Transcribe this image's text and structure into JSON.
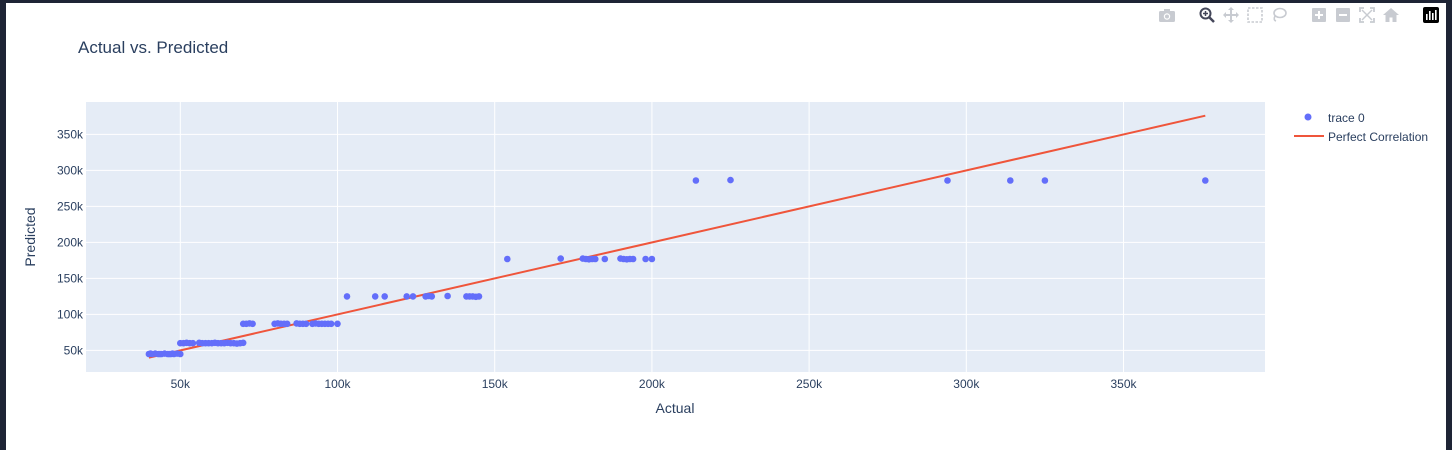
{
  "modebar": {
    "buttons": [
      "camera-icon",
      "zoom-icon",
      "pan-icon",
      "box-select-icon",
      "lasso-select-icon",
      "zoom-in-icon",
      "zoom-out-icon",
      "autoscale-icon",
      "reset-axes-icon",
      "plotly-logo-icon"
    ]
  },
  "chart_data": {
    "type": "scatter",
    "title": "Actual vs. Predicted",
    "xlabel": "Actual",
    "ylabel": "Predicted",
    "xlim": [
      20000,
      395000
    ],
    "ylim": [
      20000,
      395000
    ],
    "x_ticks": [
      50000,
      100000,
      150000,
      200000,
      250000,
      300000,
      350000
    ],
    "x_tick_labels": [
      "50k",
      "100k",
      "150k",
      "200k",
      "250k",
      "300k",
      "350k"
    ],
    "y_ticks": [
      50000,
      100000,
      150000,
      200000,
      250000,
      300000,
      350000
    ],
    "y_tick_labels": [
      "50k",
      "100k",
      "150k",
      "200k",
      "250k",
      "300k",
      "350k"
    ],
    "grid": true,
    "legend_position": "top-right",
    "colors": {
      "scatter": "#636efa",
      "line": "#ef553b",
      "plot_bg": "#e5ecf6",
      "text": "#2a3f5f"
    },
    "series": [
      {
        "name": "trace 0",
        "mode": "markers",
        "points": [
          [
            40000,
            45000
          ],
          [
            41000,
            45000
          ],
          [
            42000,
            45500
          ],
          [
            43000,
            45000
          ],
          [
            44000,
            45000
          ],
          [
            45000,
            45500
          ],
          [
            46000,
            45000
          ],
          [
            47000,
            45000
          ],
          [
            48000,
            45000
          ],
          [
            49000,
            45500
          ],
          [
            50000,
            45000
          ],
          [
            40500,
            45500
          ],
          [
            43500,
            45000
          ],
          [
            47500,
            45500
          ],
          [
            46500,
            45000
          ],
          [
            50000,
            60000
          ],
          [
            51000,
            60000
          ],
          [
            52000,
            60500
          ],
          [
            53000,
            60000
          ],
          [
            54000,
            60000
          ],
          [
            56000,
            60500
          ],
          [
            57000,
            60000
          ],
          [
            58000,
            60000
          ],
          [
            60000,
            60000
          ],
          [
            61000,
            60500
          ],
          [
            62000,
            60000
          ],
          [
            63000,
            60000
          ],
          [
            65000,
            60500
          ],
          [
            66000,
            60000
          ],
          [
            67000,
            60000
          ],
          [
            68000,
            59500
          ],
          [
            69000,
            60000
          ],
          [
            70000,
            60500
          ],
          [
            59000,
            60000
          ],
          [
            64000,
            60000
          ],
          [
            70000,
            87000
          ],
          [
            71000,
            87000
          ],
          [
            72000,
            87500
          ],
          [
            73000,
            87000
          ],
          [
            80000,
            87000
          ],
          [
            81000,
            87500
          ],
          [
            82000,
            87000
          ],
          [
            83000,
            87000
          ],
          [
            84000,
            87000
          ],
          [
            87000,
            87500
          ],
          [
            88000,
            87000
          ],
          [
            89000,
            87000
          ],
          [
            90000,
            87000
          ],
          [
            92000,
            87000
          ],
          [
            93000,
            87500
          ],
          [
            94000,
            87000
          ],
          [
            95000,
            87000
          ],
          [
            96000,
            87000
          ],
          [
            97000,
            87000
          ],
          [
            98000,
            87000
          ],
          [
            100000,
            87000
          ],
          [
            103000,
            125000
          ],
          [
            112000,
            125000
          ],
          [
            115000,
            125000
          ],
          [
            122000,
            125000
          ],
          [
            124000,
            125000
          ],
          [
            128000,
            125000
          ],
          [
            129000,
            125500
          ],
          [
            130000,
            125000
          ],
          [
            135000,
            125500
          ],
          [
            141000,
            125000
          ],
          [
            142000,
            125000
          ],
          [
            143000,
            125000
          ],
          [
            144000,
            124500
          ],
          [
            145000,
            125000
          ],
          [
            154000,
            177000
          ],
          [
            171000,
            177500
          ],
          [
            178000,
            177500
          ],
          [
            179000,
            177000
          ],
          [
            180000,
            176500
          ],
          [
            181000,
            177000
          ],
          [
            182000,
            177000
          ],
          [
            185000,
            177000
          ],
          [
            190000,
            177500
          ],
          [
            191000,
            177000
          ],
          [
            192000,
            176500
          ],
          [
            193000,
            177000
          ],
          [
            194000,
            177000
          ],
          [
            198000,
            177000
          ],
          [
            200000,
            177000
          ],
          [
            214000,
            286000
          ],
          [
            225000,
            286500
          ],
          [
            294000,
            286000
          ],
          [
            314000,
            286000
          ],
          [
            325000,
            286000
          ],
          [
            376000,
            286000
          ]
        ]
      },
      {
        "name": "Perfect Correlation",
        "mode": "lines",
        "points": [
          [
            40000,
            40000
          ],
          [
            376000,
            376000
          ]
        ]
      }
    ]
  }
}
